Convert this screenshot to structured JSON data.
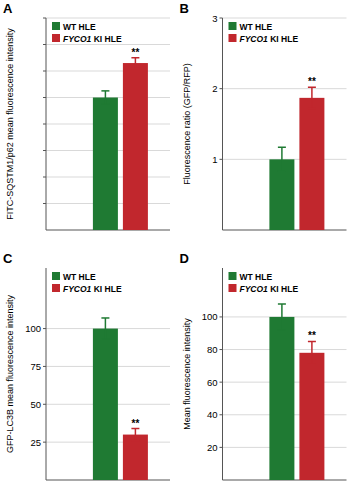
{
  "chart_data": [
    {
      "type": "bar",
      "title": "A",
      "y_label": "FITC-SQSTM1/p62 mean fluorescence intensity",
      "categories": [
        null
      ],
      "series": [
        {
          "name": "WT HLE",
          "color": "#1f7a33",
          "values": [
            100
          ],
          "errors": [
            5
          ]
        },
        {
          "name": "FYCO1 KI HLE",
          "color": "#c1272d",
          "values": [
            126
          ],
          "errors": [
            4
          ]
        }
      ],
      "annotation": "**",
      "ylim": [
        0,
        160
      ],
      "yticks": [
        20,
        40,
        60,
        80,
        100,
        120,
        140,
        160
      ],
      "grid": true,
      "legend": "top-left",
      "tick_labels": false
    },
    {
      "type": "bar",
      "title": "B",
      "y_label": "Fluorescence ratio (GFP/RFP)",
      "categories": [
        null
      ],
      "series": [
        {
          "name": "WT HLE",
          "color": "#1f7a33",
          "values": [
            1.0
          ],
          "errors": [
            0.17
          ]
        },
        {
          "name": "FYCO1 KI HLE",
          "color": "#c1272d",
          "values": [
            1.87
          ],
          "errors": [
            0.15
          ]
        }
      ],
      "annotation": "**",
      "ylim": [
        0,
        3
      ],
      "yticks": [
        1,
        2,
        3
      ],
      "grid": true,
      "legend": "top-left",
      "tick_labels": "y"
    },
    {
      "type": "bar",
      "title": "C",
      "y_label": "GFP-LC3B mean fluorescence intensity",
      "categories": [
        null
      ],
      "series": [
        {
          "name": "WT HLE",
          "color": "#1f7a33",
          "values": [
            100
          ],
          "errors": [
            7
          ]
        },
        {
          "name": "FYCO1 KI HLE",
          "color": "#c1272d",
          "values": [
            30
          ],
          "errors": [
            4
          ]
        }
      ],
      "annotation": "**",
      "ylim": [
        0,
        140
      ],
      "yticks": [
        25,
        50,
        75,
        100
      ],
      "grid": true,
      "legend": "top-left",
      "tick_labels": "y"
    },
    {
      "type": "bar",
      "title": "D",
      "y_label": "Mean fluorescence intensity",
      "categories": [
        null
      ],
      "series": [
        {
          "name": "WT HLE",
          "color": "#1f7a33",
          "values": [
            100
          ],
          "errors": [
            8
          ]
        },
        {
          "name": "FYCO1 KI HLE",
          "color": "#c1272d",
          "values": [
            78
          ],
          "errors": [
            7
          ]
        }
      ],
      "annotation": "**",
      "ylim": [
        0,
        130
      ],
      "yticks": [
        20,
        40,
        60,
        80,
        100
      ],
      "grid": true,
      "legend": "top-left",
      "tick_labels": "y"
    }
  ]
}
